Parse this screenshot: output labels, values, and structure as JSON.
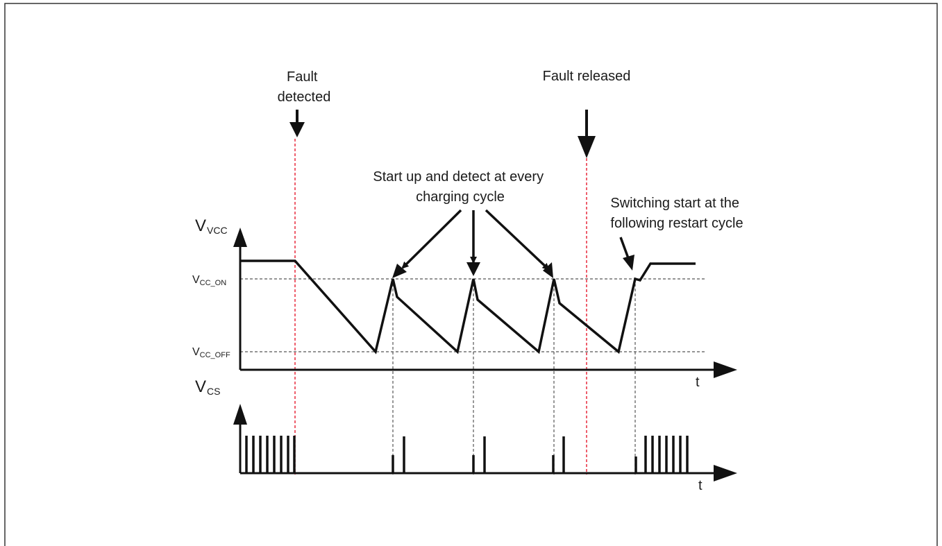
{
  "annotations": {
    "fault_detected": [
      "Fault",
      "detected"
    ],
    "fault_released": "Fault released",
    "startup_detect": [
      "Start up and detect at every",
      "charging cycle"
    ],
    "switching_start": [
      "Switching start at the",
      "following restart cycle"
    ]
  },
  "axes": {
    "vvcc": {
      "main": "V",
      "sub": "VCC"
    },
    "vcs": {
      "main": "V",
      "sub": "CS"
    },
    "t_top": "t",
    "t_bottom": "t"
  },
  "levels": {
    "vcc_on": {
      "main": "V",
      "sub": "CC_ON"
    },
    "vcc_off": {
      "main": "V",
      "sub": "CC_OFF"
    }
  },
  "colors": {
    "trace": "#111111",
    "fault_marker": "#e8283c",
    "guide": "#555555",
    "frame": "#333333"
  }
}
